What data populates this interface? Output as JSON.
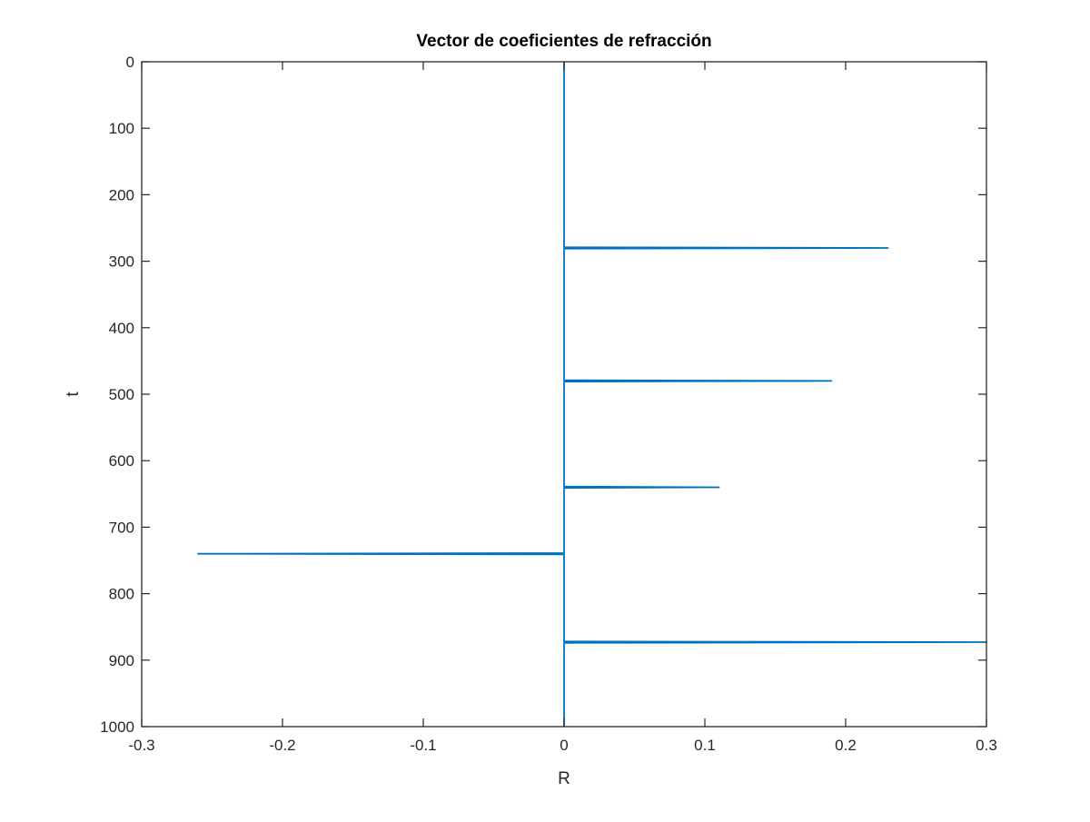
{
  "chart_data": {
    "type": "line",
    "title": "Vector de coeficientes de refracción",
    "xlabel": "R",
    "ylabel": "t",
    "xlim": [
      -0.3,
      0.3
    ],
    "ylim": [
      0,
      1000
    ],
    "y_reversed": true,
    "grid": false,
    "legend": "none",
    "x_ticks": [
      -0.3,
      -0.2,
      -0.1,
      0,
      0.1,
      0.2,
      0.3
    ],
    "x_tick_labels": [
      "-0.3",
      "-0.2",
      "-0.1",
      "0",
      "0.1",
      "0.2",
      "0.3"
    ],
    "y_ticks": [
      0,
      100,
      200,
      300,
      400,
      500,
      600,
      700,
      800,
      900,
      1000
    ],
    "y_tick_labels": [
      "0",
      "100",
      "200",
      "300",
      "400",
      "500",
      "600",
      "700",
      "800",
      "900",
      "1000"
    ],
    "series": [
      {
        "color": "#0072BD",
        "points": [
          {
            "t": 0,
            "R": 0
          },
          {
            "t": 279,
            "R": 0
          },
          {
            "t": 280,
            "R": 0.23
          },
          {
            "t": 281,
            "R": 0
          },
          {
            "t": 479,
            "R": 0
          },
          {
            "t": 480,
            "R": 0.19
          },
          {
            "t": 481,
            "R": 0
          },
          {
            "t": 639,
            "R": 0
          },
          {
            "t": 640,
            "R": 0.11
          },
          {
            "t": 641,
            "R": 0
          },
          {
            "t": 739,
            "R": 0
          },
          {
            "t": 740,
            "R": -0.26
          },
          {
            "t": 741,
            "R": 0
          },
          {
            "t": 872,
            "R": 0
          },
          {
            "t": 873,
            "R": 0.3
          },
          {
            "t": 874,
            "R": 0
          },
          {
            "t": 1000,
            "R": 0
          }
        ]
      }
    ]
  }
}
